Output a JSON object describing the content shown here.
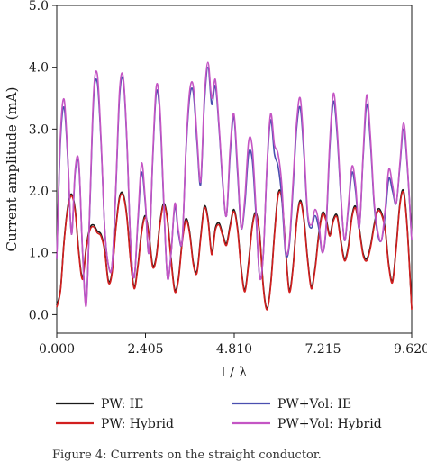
{
  "caption": "Figure 4: Currents on the straight conductor.",
  "chart_data": {
    "type": "line",
    "xlabel": "l / λ",
    "ylabel": "Current amplitude (mA)",
    "xlim": [
      0,
      9.62
    ],
    "ylim": [
      -0.3,
      5.0
    ],
    "x_ticks": [
      0,
      2.405,
      4.81,
      7.215,
      9.62
    ],
    "x_tick_labels": [
      "0.000",
      "2.405",
      "4.810",
      "7.215",
      "9.620"
    ],
    "y_ticks": [
      0,
      1,
      2,
      3,
      4,
      5
    ],
    "y_tick_labels": [
      "0.0",
      "1.0",
      "2.0",
      "3.0",
      "4.0",
      "5.0"
    ],
    "grid": false,
    "legend_position": "below-plot",
    "x": [
      0.0,
      0.1,
      0.2,
      0.3,
      0.4,
      0.5,
      0.6,
      0.7,
      0.8,
      0.9,
      1.0,
      1.1,
      1.2,
      1.3,
      1.4,
      1.5,
      1.6,
      1.7,
      1.8,
      1.9,
      2.0,
      2.1,
      2.2,
      2.3,
      2.4,
      2.5,
      2.6,
      2.7,
      2.8,
      2.9,
      3.0,
      3.1,
      3.2,
      3.3,
      3.4,
      3.5,
      3.6,
      3.7,
      3.8,
      3.9,
      4.0,
      4.1,
      4.2,
      4.3,
      4.4,
      4.5,
      4.6,
      4.7,
      4.8,
      4.9,
      5.0,
      5.1,
      5.2,
      5.3,
      5.4,
      5.5,
      5.6,
      5.7,
      5.8,
      5.9,
      6.0,
      6.1,
      6.2,
      6.3,
      6.4,
      6.5,
      6.6,
      6.7,
      6.8,
      6.9,
      7.0,
      7.1,
      7.2,
      7.3,
      7.4,
      7.5,
      7.6,
      7.7,
      7.8,
      7.9,
      8.0,
      8.1,
      8.2,
      8.3,
      8.4,
      8.5,
      8.6,
      8.7,
      8.8,
      8.9,
      9.0,
      9.1,
      9.2,
      9.3,
      9.4,
      9.5,
      9.62
    ],
    "series": [
      {
        "name": "PW: IE",
        "color": "#1a1a1a",
        "values": [
          0.15,
          0.4,
          1.2,
          1.75,
          1.95,
          1.7,
          1.0,
          0.6,
          1.1,
          1.4,
          1.45,
          1.35,
          1.3,
          1.05,
          0.55,
          0.7,
          1.4,
          1.9,
          1.95,
          1.6,
          0.9,
          0.45,
          0.8,
          1.35,
          1.6,
          1.3,
          0.8,
          0.95,
          1.5,
          1.8,
          1.55,
          0.9,
          0.4,
          0.6,
          1.2,
          1.55,
          1.35,
          0.85,
          0.7,
          1.25,
          1.75,
          1.55,
          1.0,
          1.4,
          1.48,
          1.3,
          1.15,
          1.45,
          1.7,
          1.4,
          0.75,
          0.4,
          0.85,
          1.45,
          1.65,
          1.3,
          0.45,
          0.1,
          0.5,
          1.3,
          1.95,
          1.9,
          1.1,
          0.4,
          0.75,
          1.5,
          1.85,
          1.55,
          0.9,
          0.45,
          0.75,
          1.3,
          1.65,
          1.55,
          1.3,
          1.55,
          1.6,
          1.2,
          0.9,
          1.1,
          1.6,
          1.75,
          1.4,
          1.0,
          0.9,
          1.1,
          1.45,
          1.7,
          1.65,
          1.4,
          0.8,
          0.55,
          1.1,
          1.8,
          2.0,
          1.4,
          0.1
        ]
      },
      {
        "name": "PW: Hybrid",
        "color": "#d21f1f",
        "values": [
          0.12,
          0.38,
          1.18,
          1.72,
          1.92,
          1.67,
          0.97,
          0.57,
          1.07,
          1.37,
          1.42,
          1.32,
          1.27,
          1.02,
          0.52,
          0.67,
          1.37,
          1.87,
          1.92,
          1.57,
          0.87,
          0.42,
          0.77,
          1.32,
          1.57,
          1.27,
          0.77,
          0.92,
          1.47,
          1.77,
          1.52,
          0.87,
          0.37,
          0.57,
          1.17,
          1.52,
          1.32,
          0.82,
          0.67,
          1.22,
          1.72,
          1.52,
          0.97,
          1.37,
          1.45,
          1.27,
          1.12,
          1.42,
          1.67,
          1.37,
          0.72,
          0.37,
          0.82,
          1.42,
          1.62,
          1.27,
          0.42,
          0.08,
          0.47,
          1.27,
          1.92,
          1.87,
          1.07,
          0.37,
          0.72,
          1.47,
          1.82,
          1.52,
          0.87,
          0.42,
          0.72,
          1.27,
          1.62,
          1.52,
          1.27,
          1.52,
          1.57,
          1.17,
          0.87,
          1.07,
          1.57,
          1.72,
          1.37,
          0.97,
          0.87,
          1.07,
          1.42,
          1.67,
          1.62,
          1.37,
          0.77,
          0.52,
          1.07,
          1.77,
          1.97,
          1.37,
          0.08
        ]
      },
      {
        "name": "PW+Vol: IE",
        "color": "#4a4fb0",
        "values": [
          0.9,
          2.8,
          3.35,
          2.5,
          1.3,
          2.3,
          2.4,
          1.0,
          0.2,
          1.8,
          3.5,
          3.75,
          2.8,
          1.4,
          0.8,
          0.8,
          2.0,
          3.5,
          3.8,
          2.8,
          1.2,
          0.6,
          1.5,
          2.3,
          1.8,
          1.0,
          2.5,
          3.6,
          3.2,
          1.8,
          0.6,
          1.0,
          1.75,
          1.3,
          1.2,
          2.6,
          3.5,
          3.6,
          2.8,
          2.1,
          3.4,
          4.0,
          3.4,
          3.7,
          3.0,
          2.1,
          1.6,
          2.6,
          3.2,
          2.3,
          1.4,
          1.8,
          2.6,
          2.5,
          1.6,
          0.6,
          1.0,
          2.4,
          3.15,
          2.6,
          2.4,
          1.9,
          1.0,
          1.1,
          2.0,
          3.0,
          3.35,
          2.6,
          1.6,
          1.4,
          1.6,
          1.4,
          1.0,
          1.4,
          2.7,
          3.45,
          2.9,
          1.9,
          1.2,
          1.7,
          2.3,
          2.0,
          1.4,
          2.5,
          3.4,
          2.8,
          1.8,
          1.3,
          1.2,
          1.6,
          2.2,
          2.0,
          1.8,
          2.4,
          3.0,
          2.4,
          1.2
        ]
      },
      {
        "name": "PW+Vol: Hybrid",
        "color": "#c455c4",
        "values": [
          0.9,
          2.9,
          3.48,
          2.55,
          1.3,
          2.35,
          2.45,
          1.0,
          0.15,
          1.85,
          3.6,
          3.88,
          2.85,
          1.4,
          0.8,
          0.8,
          2.05,
          3.6,
          3.85,
          2.85,
          1.2,
          0.6,
          1.55,
          2.45,
          1.85,
          1.0,
          2.55,
          3.7,
          3.3,
          1.85,
          0.6,
          1.0,
          1.8,
          1.35,
          1.2,
          2.65,
          3.6,
          3.7,
          2.9,
          2.15,
          3.5,
          4.08,
          3.5,
          3.8,
          3.05,
          2.15,
          1.6,
          2.7,
          3.25,
          2.4,
          1.4,
          1.9,
          2.8,
          2.7,
          1.7,
          0.6,
          1.0,
          2.45,
          3.25,
          2.75,
          2.6,
          2.1,
          1.05,
          1.15,
          2.1,
          3.1,
          3.5,
          2.7,
          1.65,
          1.45,
          1.7,
          1.5,
          1.0,
          1.45,
          2.8,
          3.58,
          3.0,
          1.95,
          1.2,
          1.75,
          2.4,
          2.1,
          1.4,
          2.55,
          3.55,
          2.9,
          1.85,
          1.35,
          1.2,
          1.7,
          2.35,
          2.1,
          1.8,
          2.45,
          3.1,
          2.45,
          1.2
        ]
      }
    ]
  }
}
